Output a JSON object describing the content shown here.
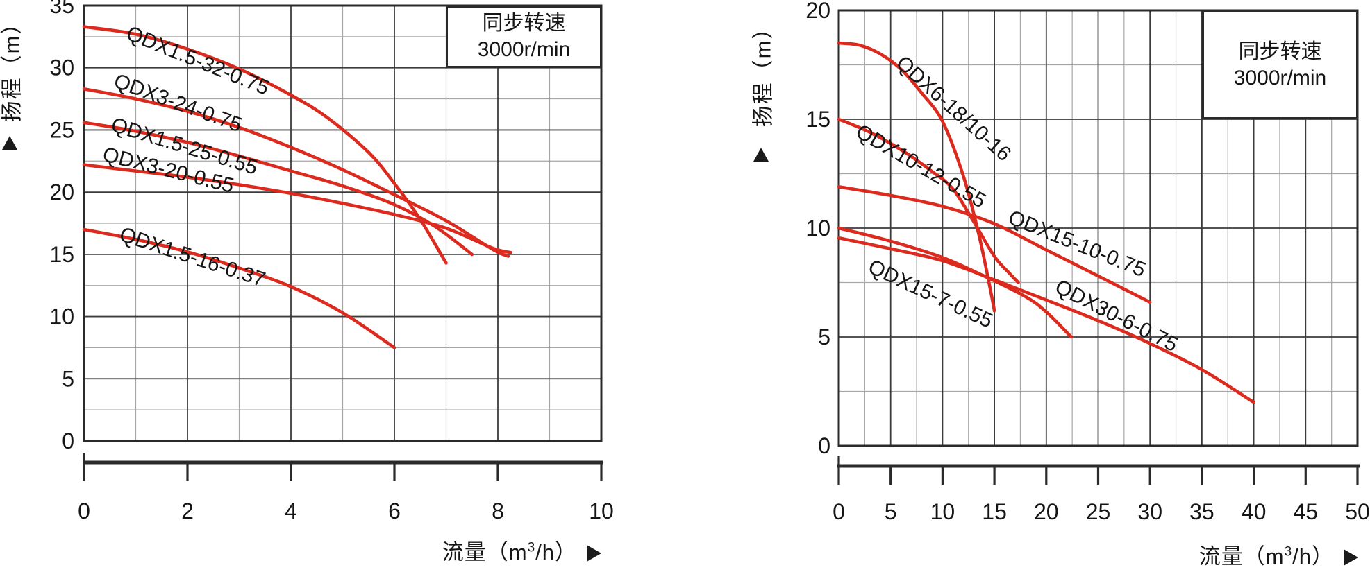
{
  "colors": {
    "curve_red": "#dc2b1e",
    "grid_major": "#3c3c3c",
    "grid_minor": "#a6a6a6",
    "frame": "#2a2a2a",
    "text": "#151515",
    "background": "#ffffff"
  },
  "chart_data": [
    {
      "type": "line",
      "title": "",
      "x_label": "流量（m³/h）",
      "x_label_parts": {
        "prefix": "流量（m",
        "sup": "3",
        "suffix": "/h）"
      },
      "y_label": "扬程（m）",
      "x_range": [
        0,
        10
      ],
      "y_range": [
        0,
        35
      ],
      "x_ticks": [
        0,
        2,
        4,
        6,
        8,
        10
      ],
      "y_ticks": [
        0,
        5,
        10,
        15,
        20,
        25,
        30,
        35
      ],
      "x_major_step": 2,
      "x_minor_step": 1,
      "y_major_step": 5,
      "y_minor_step": 2.5,
      "grid": "on",
      "legend": "none",
      "annotation": {
        "line1": "同步转速",
        "line2": "3000r/min",
        "box_x": [
          7,
          10
        ],
        "box_y": [
          30,
          35
        ]
      },
      "series": [
        {
          "name": "QDX1.5-32-0.75",
          "points": [
            [
              0,
              33.3
            ],
            [
              1,
              32.7
            ],
            [
              2,
              31.5
            ],
            [
              3,
              29.9
            ],
            [
              4,
              27.8
            ],
            [
              4.7,
              26.0
            ],
            [
              5.5,
              23.2
            ],
            [
              6,
              20.7
            ],
            [
              6.5,
              17.8
            ],
            [
              7,
              14.3
            ]
          ],
          "label_at": [
            0.79,
            32.35
          ],
          "label_angle": 22
        },
        {
          "name": "QDX3-24-0.75",
          "points": [
            [
              0,
              28.3
            ],
            [
              1,
              27.5
            ],
            [
              2,
              26.5
            ],
            [
              3,
              25.2
            ],
            [
              4,
              23.6
            ],
            [
              5,
              21.8
            ],
            [
              6,
              19.8
            ],
            [
              7,
              17.7
            ],
            [
              7.9,
              15.4
            ],
            [
              8.2,
              14.85
            ]
          ],
          "label_at": [
            0.55,
            28.5
          ],
          "label_angle": 20
        },
        {
          "name": "QDX1.5-25-0.55",
          "points": [
            [
              0,
              25.6
            ],
            [
              1,
              24.9
            ],
            [
              2,
              24.0
            ],
            [
              3,
              22.9
            ],
            [
              4,
              21.7
            ],
            [
              5,
              20.5
            ],
            [
              6,
              19.0
            ],
            [
              6.8,
              17.2
            ],
            [
              7.5,
              15.0
            ]
          ],
          "label_at": [
            0.5,
            24.95
          ],
          "label_angle": 17
        },
        {
          "name": "QDX3-20-0.55",
          "points": [
            [
              0,
              22.2
            ],
            [
              1,
              21.7
            ],
            [
              2,
              21.2
            ],
            [
              3,
              20.6
            ],
            [
              4,
              19.9
            ],
            [
              5,
              19.1
            ],
            [
              6,
              18.2
            ],
            [
              7,
              17.1
            ],
            [
              7.9,
              15.5
            ],
            [
              8.25,
              15.15
            ]
          ],
          "label_at": [
            0.34,
            22.55
          ],
          "label_angle": 14
        },
        {
          "name": "QDX1.5-16-0.37",
          "points": [
            [
              0,
              17.0
            ],
            [
              1,
              16.2
            ],
            [
              2,
              15.2
            ],
            [
              3,
              13.9
            ],
            [
              4,
              12.4
            ],
            [
              5,
              10.3
            ],
            [
              6,
              7.5
            ]
          ],
          "label_at": [
            0.66,
            16.15
          ],
          "label_angle": 18
        }
      ]
    },
    {
      "type": "line",
      "title": "",
      "x_label": "流量（m³/h）",
      "x_label_parts": {
        "prefix": "流量（m",
        "sup": "3",
        "suffix": "/h）"
      },
      "y_label": "扬程（m）",
      "x_range": [
        0,
        50
      ],
      "y_range": [
        0,
        20
      ],
      "x_ticks": [
        0,
        5,
        10,
        15,
        20,
        25,
        30,
        35,
        40,
        45,
        50
      ],
      "y_ticks": [
        0,
        5,
        10,
        15,
        20
      ],
      "x_major_step": 5,
      "x_minor_step": 2.5,
      "y_major_step": 5,
      "y_minor_step": 2.5,
      "grid": "on",
      "legend": "none",
      "annotation": {
        "line1": "同步转速",
        "line2": "3000r/min",
        "box_x": [
          35,
          50
        ],
        "box_y": [
          15,
          20
        ]
      },
      "series": [
        {
          "name": "QDX6-18/10-16",
          "points": [
            [
              0,
              18.5
            ],
            [
              2,
              18.4
            ],
            [
              4,
              18.0
            ],
            [
              6,
              17.3
            ],
            [
              8,
              16.2
            ],
            [
              10,
              14.9
            ],
            [
              12,
              12.4
            ],
            [
              13.5,
              9.7
            ],
            [
              14.6,
              7.2
            ],
            [
              15,
              6.2
            ]
          ],
          "label_at": [
            5.4,
            17.5
          ],
          "label_angle": 42
        },
        {
          "name": "QDX10-12-0.55",
          "points": [
            [
              0,
              15.0
            ],
            [
              3,
              14.4
            ],
            [
              6,
              13.6
            ],
            [
              9,
              12.6
            ],
            [
              11,
              11.8
            ],
            [
              13,
              10.3
            ],
            [
              15,
              8.7
            ],
            [
              16.5,
              7.9
            ],
            [
              17.3,
              7.5
            ]
          ],
          "label_at": [
            1.5,
            14.25
          ],
          "label_angle": 30
        },
        {
          "name": "QDX15-10-0.75",
          "points": [
            [
              0,
              11.9
            ],
            [
              5,
              11.5
            ],
            [
              10,
              11.0
            ],
            [
              15,
              10.2
            ],
            [
              20,
              9.0
            ],
            [
              25,
              7.8
            ],
            [
              30,
              6.6
            ]
          ],
          "label_at": [
            16.2,
            10.25
          ],
          "label_angle": 22
        },
        {
          "name": "QDX15-7-0.55",
          "points": [
            [
              0,
              10.0
            ],
            [
              5,
              9.4
            ],
            [
              10,
              8.65
            ],
            [
              14,
              7.8
            ],
            [
              18,
              6.85
            ],
            [
              20,
              6.15
            ],
            [
              22.4,
              5.0
            ]
          ],
          "label_at": [
            2.7,
            8.0
          ],
          "label_angle": 25
        },
        {
          "name": "QDX30-6-0.75",
          "points": [
            [
              0,
              9.55
            ],
            [
              5,
              9.05
            ],
            [
              10,
              8.5
            ],
            [
              15,
              7.62
            ],
            [
              20,
              6.7
            ],
            [
              25,
              5.75
            ],
            [
              30,
              4.7
            ],
            [
              35,
              3.5
            ],
            [
              40,
              2.0
            ]
          ],
          "label_at": [
            20.7,
            7.1
          ],
          "label_angle": 27
        }
      ]
    }
  ]
}
